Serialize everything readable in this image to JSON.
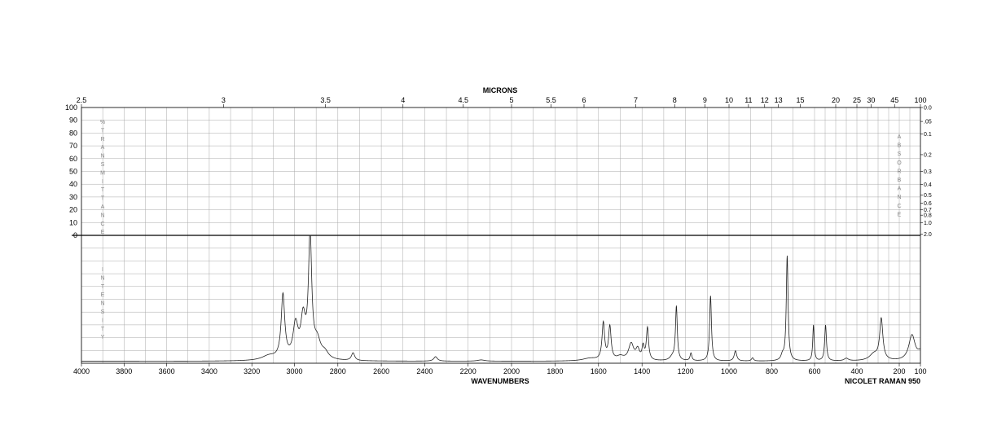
{
  "chart_data": {
    "type": "line",
    "top_title": "MICRONS",
    "xlabel": "WAVENUMBERS",
    "instrument": "NICOLET RAMAN 950",
    "x_range": [
      4000,
      100
    ],
    "x_ticks": [
      4000,
      3800,
      3600,
      3400,
      3200,
      3000,
      2800,
      2600,
      2400,
      2200,
      2000,
      1800,
      1600,
      1400,
      1200,
      1000,
      800,
      600,
      400,
      200,
      100
    ],
    "micron_ticks": [
      {
        "label": "2.5",
        "wn": 4000
      },
      {
        "label": "3",
        "wn": 3333.3
      },
      {
        "label": "3.5",
        "wn": 2857.1
      },
      {
        "label": "4",
        "wn": 2500
      },
      {
        "label": "4.5",
        "wn": 2222.2
      },
      {
        "label": "5",
        "wn": 2000
      },
      {
        "label": "5.5",
        "wn": 1818.2
      },
      {
        "label": "6",
        "wn": 1666.7
      },
      {
        "label": "7",
        "wn": 1428.6
      },
      {
        "label": "8",
        "wn": 1250
      },
      {
        "label": "9",
        "wn": 1111.1
      },
      {
        "label": "10",
        "wn": 1000
      },
      {
        "label": "11",
        "wn": 909.1
      },
      {
        "label": "12",
        "wn": 833.3
      },
      {
        "label": "13",
        "wn": 769.2
      },
      {
        "label": "15",
        "wn": 666.7
      },
      {
        "label": "20",
        "wn": 500
      },
      {
        "label": "25",
        "wn": 400
      },
      {
        "label": "30",
        "wn": 333.3
      },
      {
        "label": "45",
        "wn": 222.2
      },
      {
        "label": "100",
        "wn": 100
      }
    ],
    "transmittance_ticks": [
      "100",
      "90",
      "80",
      "70",
      "60",
      "50",
      "40",
      "30",
      "20",
      "10",
      "0"
    ],
    "absorbance_ticks": [
      {
        "label": "0.0",
        "t": 100
      },
      {
        "label": ".05",
        "t": 89.1
      },
      {
        "label": "0.1",
        "t": 79.4
      },
      {
        "label": "0.2",
        "t": 63.1
      },
      {
        "label": "0.3",
        "t": 50.1
      },
      {
        "label": "0.4",
        "t": 39.8
      },
      {
        "label": "0.5",
        "t": 31.6
      },
      {
        "label": "0.6",
        "t": 25.1
      },
      {
        "label": "0.7",
        "t": 20.0
      },
      {
        "label": "0.8",
        "t": 15.8
      },
      {
        "label": "1.0",
        "t": 10.0
      },
      {
        "label": "2.0",
        "t": 1.0
      }
    ],
    "left_top_label": "% T R A N S M I T T A N C E",
    "left_bottom_label": "I N T E N S I T Y",
    "right_top_label": "A B S O R B A N C E",
    "intensity_range": [
      0,
      100
    ],
    "grid": true,
    "baseline": 1.5,
    "peaks": [
      {
        "x": 3120,
        "y": 3.5,
        "w": 40
      },
      {
        "x": 3054,
        "y": 50,
        "w": 10
      },
      {
        "x": 2995,
        "y": 26,
        "w": 14
      },
      {
        "x": 2960,
        "y": 30,
        "w": 13
      },
      {
        "x": 2928,
        "y": 95,
        "w": 9
      },
      {
        "x": 2895,
        "y": 13,
        "w": 18
      },
      {
        "x": 2860,
        "y": 5,
        "w": 20
      },
      {
        "x": 2730,
        "y": 6,
        "w": 9
      },
      {
        "x": 2350,
        "y": 3.5,
        "w": 10
      },
      {
        "x": 2140,
        "y": 1,
        "w": 20
      },
      {
        "x": 1640,
        "y": 2,
        "w": 40
      },
      {
        "x": 1578,
        "y": 29,
        "w": 7
      },
      {
        "x": 1548,
        "y": 26,
        "w": 7
      },
      {
        "x": 1500,
        "y": 3,
        "w": 20
      },
      {
        "x": 1450,
        "y": 13,
        "w": 14
      },
      {
        "x": 1420,
        "y": 8,
        "w": 10
      },
      {
        "x": 1395,
        "y": 10,
        "w": 6
      },
      {
        "x": 1375,
        "y": 25,
        "w": 6
      },
      {
        "x": 1260,
        "y": 3,
        "w": 15
      },
      {
        "x": 1242,
        "y": 42,
        "w": 5
      },
      {
        "x": 1175,
        "y": 6,
        "w": 5
      },
      {
        "x": 1085,
        "y": 51,
        "w": 5
      },
      {
        "x": 970,
        "y": 8,
        "w": 7
      },
      {
        "x": 890,
        "y": 2.5,
        "w": 6
      },
      {
        "x": 750,
        "y": 4,
        "w": 8
      },
      {
        "x": 728,
        "y": 82,
        "w": 5
      },
      {
        "x": 605,
        "y": 28,
        "w": 4
      },
      {
        "x": 548,
        "y": 28,
        "w": 5
      },
      {
        "x": 450,
        "y": 2,
        "w": 12
      },
      {
        "x": 320,
        "y": 5,
        "w": 25
      },
      {
        "x": 285,
        "y": 32,
        "w": 9
      },
      {
        "x": 140,
        "y": 20,
        "w": 18
      },
      {
        "x": 100,
        "y": 6,
        "w": 15
      }
    ]
  }
}
